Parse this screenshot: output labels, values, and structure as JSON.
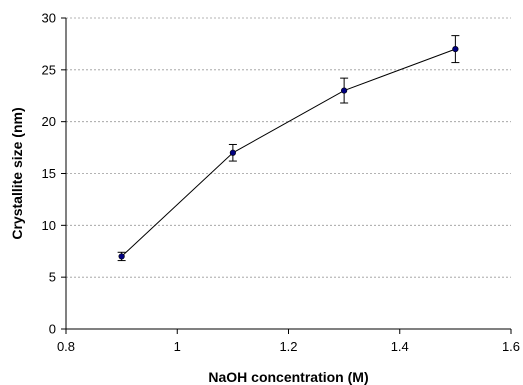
{
  "chart_data": {
    "type": "line",
    "xlabel": "NaOH concentration  (M)",
    "ylabel": "Crystallite size (nm)",
    "xlim": [
      0.8,
      1.6
    ],
    "ylim": [
      0,
      30
    ],
    "x_ticks": [
      0.8,
      1.0,
      1.2,
      1.4,
      1.6
    ],
    "x_tick_labels": [
      "0.8",
      "1",
      "1.2",
      "1.4",
      "1.6"
    ],
    "y_ticks": [
      0,
      5,
      10,
      15,
      20,
      25,
      30
    ],
    "y_tick_labels": [
      "0",
      "5",
      "10",
      "15",
      "20",
      "25",
      "30"
    ],
    "grid": "horizontal dashed",
    "legend": "none",
    "series": [
      {
        "x": [
          0.9,
          1.1,
          1.3,
          1.5
        ],
        "y": [
          7,
          17,
          23,
          27
        ],
        "error": [
          0.4,
          0.8,
          1.2,
          1.3
        ],
        "color": "#000080"
      }
    ]
  }
}
